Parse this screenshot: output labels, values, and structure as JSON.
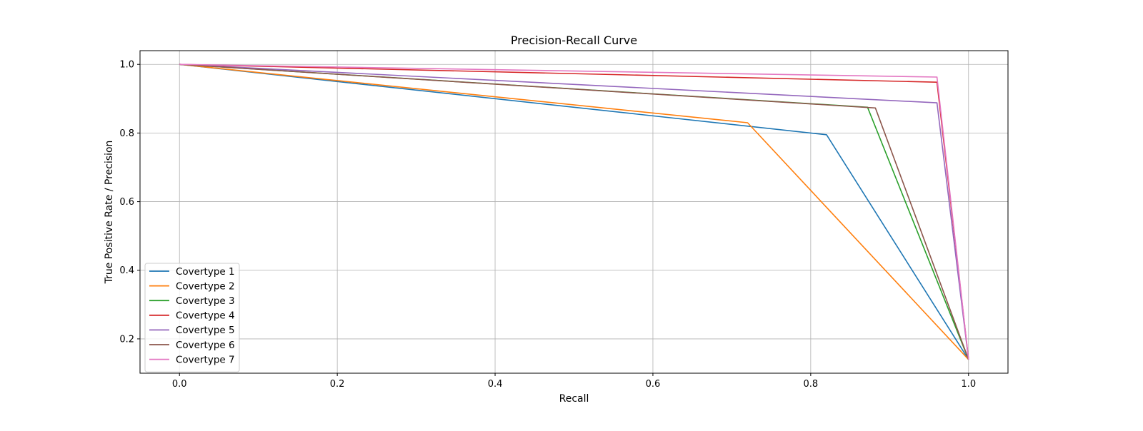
{
  "chart_data": {
    "type": "line",
    "title": "Precision-Recall Curve",
    "xlabel": "Recall",
    "ylabel": "True Positive Rate / Precision",
    "xlim": [
      -0.05,
      1.05
    ],
    "ylim": [
      0.1,
      1.04
    ],
    "xticks": [
      0.0,
      0.2,
      0.4,
      0.6,
      0.8,
      1.0
    ],
    "xtick_labels": [
      "0.0",
      "0.2",
      "0.4",
      "0.6",
      "0.8",
      "1.0"
    ],
    "yticks": [
      0.2,
      0.4,
      0.6,
      0.8,
      1.0
    ],
    "ytick_labels": [
      "0.2",
      "0.4",
      "0.6",
      "0.8",
      "1.0"
    ],
    "grid": true,
    "legend_position": "lower-left",
    "series": [
      {
        "name": "Covertype 1",
        "color": "#1f77b4",
        "points": [
          [
            0.0,
            1.0
          ],
          [
            0.82,
            0.795
          ],
          [
            1.0,
            0.14
          ]
        ]
      },
      {
        "name": "Covertype 2",
        "color": "#ff7f0e",
        "points": [
          [
            0.0,
            1.0
          ],
          [
            0.72,
            0.83
          ],
          [
            1.0,
            0.14
          ]
        ]
      },
      {
        "name": "Covertype 3",
        "color": "#2ca02c",
        "points": [
          [
            0.0,
            1.0
          ],
          [
            0.872,
            0.875
          ],
          [
            1.0,
            0.14
          ]
        ]
      },
      {
        "name": "Covertype 4",
        "color": "#d62728",
        "points": [
          [
            0.0,
            1.0
          ],
          [
            0.96,
            0.948
          ],
          [
            1.0,
            0.14
          ]
        ]
      },
      {
        "name": "Covertype 5",
        "color": "#9467bd",
        "points": [
          [
            0.0,
            1.0
          ],
          [
            0.96,
            0.888
          ],
          [
            1.0,
            0.14
          ]
        ]
      },
      {
        "name": "Covertype 6",
        "color": "#8c564b",
        "points": [
          [
            0.0,
            1.0
          ],
          [
            0.882,
            0.873
          ],
          [
            1.0,
            0.14
          ]
        ]
      },
      {
        "name": "Covertype 7",
        "color": "#e377c2",
        "points": [
          [
            0.0,
            1.0
          ],
          [
            0.96,
            0.963
          ],
          [
            1.0,
            0.14
          ]
        ]
      }
    ]
  }
}
